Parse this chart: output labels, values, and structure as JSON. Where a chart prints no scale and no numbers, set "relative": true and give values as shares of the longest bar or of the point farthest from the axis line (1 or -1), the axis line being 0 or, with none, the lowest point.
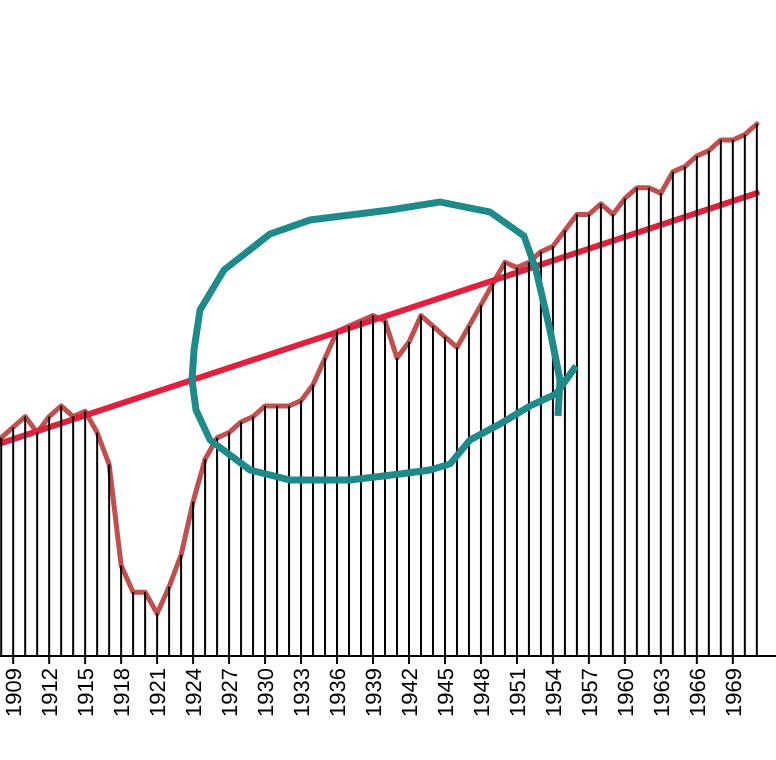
{
  "chart_data": {
    "type": "line",
    "relative": true,
    "x": [
      1908,
      1909,
      1910,
      1911,
      1912,
      1913,
      1914,
      1915,
      1916,
      1917,
      1918,
      1919,
      1920,
      1921,
      1922,
      1923,
      1924,
      1925,
      1926,
      1927,
      1928,
      1929,
      1930,
      1931,
      1932,
      1933,
      1934,
      1935,
      1936,
      1937,
      1938,
      1939,
      1940,
      1941,
      1942,
      1943,
      1944,
      1945,
      1946,
      1947,
      1948,
      1949,
      1950,
      1951,
      1952,
      1953,
      1954,
      1955,
      1956,
      1957,
      1958,
      1959,
      1960,
      1961,
      1962,
      1963,
      1964,
      1965,
      1966,
      1967,
      1968,
      1969,
      1970,
      1971
    ],
    "xlim": [
      1907.9,
      1972.6
    ],
    "xticks": [
      1909,
      1912,
      1915,
      1918,
      1921,
      1924,
      1927,
      1930,
      1933,
      1936,
      1939,
      1942,
      1945,
      1948,
      1951,
      1954,
      1957,
      1960,
      1963,
      1966,
      1969
    ],
    "series": [
      {
        "type": "bar",
        "color": "#000000",
        "values": [
          0.41,
          0.43,
          0.45,
          0.42,
          0.45,
          0.47,
          0.45,
          0.46,
          0.42,
          0.36,
          0.17,
          0.12,
          0.12,
          0.08,
          0.13,
          0.19,
          0.29,
          0.37,
          0.41,
          0.42,
          0.44,
          0.45,
          0.47,
          0.47,
          0.47,
          0.48,
          0.51,
          0.56,
          0.61,
          0.62,
          0.63,
          0.64,
          0.63,
          0.56,
          0.59,
          0.64,
          0.62,
          0.6,
          0.58,
          0.62,
          0.66,
          0.7,
          0.74,
          0.73,
          0.74,
          0.76,
          0.77,
          0.8,
          0.83,
          0.83,
          0.85,
          0.83,
          0.86,
          0.88,
          0.88,
          0.87,
          0.91,
          0.92,
          0.94,
          0.95,
          0.97,
          0.97,
          0.98,
          1.0
        ]
      },
      {
        "color": "#c0504d",
        "values": [
          0.41,
          0.43,
          0.45,
          0.42,
          0.45,
          0.47,
          0.45,
          0.46,
          0.42,
          0.36,
          0.17,
          0.12,
          0.12,
          0.08,
          0.13,
          0.19,
          0.29,
          0.37,
          0.41,
          0.42,
          0.44,
          0.45,
          0.47,
          0.47,
          0.47,
          0.48,
          0.51,
          0.56,
          0.61,
          0.62,
          0.63,
          0.64,
          0.63,
          0.56,
          0.59,
          0.64,
          0.62,
          0.6,
          0.58,
          0.62,
          0.66,
          0.7,
          0.74,
          0.73,
          0.74,
          0.76,
          0.77,
          0.8,
          0.83,
          0.83,
          0.85,
          0.83,
          0.86,
          0.88,
          0.88,
          0.87,
          0.91,
          0.92,
          0.94,
          0.95,
          0.97,
          0.97,
          0.98,
          1.0
        ]
      },
      {
        "type": "line",
        "color": "#e0203c",
        "x": [
          1908,
          1971
        ],
        "values": [
          0.4,
          0.87
        ]
      }
    ]
  }
}
